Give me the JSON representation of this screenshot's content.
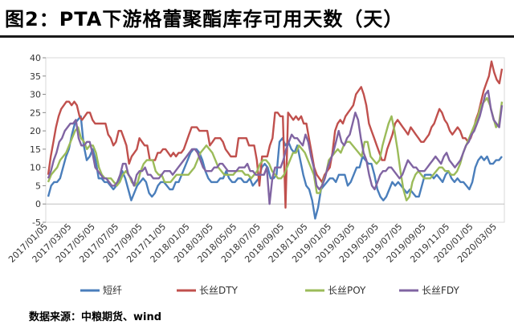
{
  "title": "图2：PTA下游格蕾聚酯库存可用天数（天）",
  "source": "数据来源：中粮期货、wind",
  "chart_data": {
    "type": "line",
    "ylim": [
      -5,
      40
    ],
    "yticks": [
      -5,
      0,
      5,
      10,
      15,
      20,
      25,
      30,
      35,
      40
    ],
    "x_tick_labels": [
      "2017/01/05",
      "2017/03/05",
      "2017/05/05",
      "2017/07/05",
      "2017/09/05",
      "2017/11/05",
      "2018/01/05",
      "2018/03/05",
      "2018/05/05",
      "2018/07/05",
      "2018/09/05",
      "2018/11/05",
      "2019/01/05",
      "2019/03/05",
      "2019/05/05",
      "2019/07/05",
      "2019/09/05",
      "2019/11/05",
      "2020/01/05",
      "2020/03/05"
    ],
    "legend_position": "bottom",
    "series": [
      {
        "name": "短纤",
        "color": "#4a7ebb",
        "values": [
          2,
          5,
          6,
          6,
          7,
          10,
          13,
          15,
          19,
          22,
          23,
          24,
          16,
          12,
          13,
          15,
          12,
          7,
          7,
          6,
          6,
          5,
          4,
          5,
          6,
          9,
          7,
          4,
          1,
          3,
          5,
          6,
          7,
          6,
          3,
          2,
          3,
          5,
          6,
          6,
          5,
          4,
          4,
          6,
          6,
          8,
          10,
          12,
          14,
          15,
          15,
          14,
          12,
          9,
          7,
          6,
          6,
          6,
          7,
          7,
          9,
          7,
          6,
          6,
          7,
          7,
          6,
          6,
          7,
          5,
          6,
          7,
          10,
          11,
          10,
          7,
          7,
          8,
          17,
          18,
          16,
          17,
          15,
          14,
          16,
          12,
          8,
          5,
          4,
          1,
          -4,
          -1,
          4,
          5,
          6,
          7,
          7,
          6,
          8,
          8,
          8,
          5,
          6,
          8,
          10,
          10,
          13,
          12,
          11,
          11,
          8,
          4,
          2,
          1,
          2,
          4,
          6,
          5,
          6,
          5,
          4,
          3,
          4,
          3,
          2,
          2,
          5,
          8,
          8,
          8,
          7,
          8,
          7,
          6,
          8,
          9,
          7,
          6,
          7,
          6,
          6,
          5,
          4,
          6,
          10,
          12,
          13,
          12,
          13,
          11,
          11,
          12,
          12,
          13
        ]
      },
      {
        "name": "长丝DTY",
        "color": "#c0504d",
        "values": [
          8,
          13,
          17,
          21,
          24,
          26,
          27,
          28,
          28,
          27,
          28,
          27,
          24,
          23,
          24,
          25,
          25,
          23,
          22,
          22,
          22,
          22,
          22,
          19,
          18,
          16,
          17,
          20,
          20,
          18,
          16,
          11,
          13,
          14,
          15,
          18,
          17,
          16,
          16,
          12,
          12,
          12,
          14,
          14,
          15,
          15,
          14,
          13,
          14,
          13,
          14,
          14,
          15,
          17,
          19,
          21,
          21,
          21,
          20,
          20,
          20,
          20,
          16,
          17,
          18,
          18,
          18,
          17,
          15,
          14,
          13,
          13,
          13,
          18,
          18,
          18,
          18,
          16,
          16,
          16,
          12,
          5,
          13,
          13,
          13,
          16,
          18,
          25,
          25,
          24,
          24,
          -1,
          25,
          24,
          23,
          24,
          23,
          24,
          22,
          22,
          18,
          14,
          10,
          8,
          7,
          6,
          8,
          9,
          10,
          14,
          20,
          22,
          23,
          22,
          24,
          25,
          26,
          27,
          30,
          31,
          32,
          30,
          27,
          22,
          20,
          18,
          16,
          14,
          12,
          12,
          15,
          17,
          19,
          22,
          23,
          22,
          21,
          20,
          19,
          21,
          20,
          19,
          18,
          17,
          17,
          18,
          19,
          21,
          22,
          24,
          26,
          25,
          23,
          22,
          20,
          19,
          20,
          21,
          20,
          18,
          18,
          17,
          18,
          20,
          23,
          25,
          28,
          31,
          33,
          35,
          39,
          36,
          34,
          33,
          37
        ]
      },
      {
        "name": "长丝POY",
        "color": "#9bbb59",
        "values": [
          6,
          8,
          9,
          10,
          12,
          13,
          14,
          16,
          18,
          20,
          21,
          18,
          17,
          15,
          16,
          16,
          14,
          10,
          8,
          7,
          7,
          7,
          6,
          5,
          6,
          8,
          9,
          8,
          6,
          5,
          6,
          9,
          11,
          12,
          12,
          12,
          9,
          8,
          8,
          6,
          6,
          6,
          7,
          8,
          8,
          8,
          8,
          8,
          9,
          10,
          12,
          14,
          15,
          16,
          15,
          14,
          12,
          10,
          9,
          8,
          8,
          8,
          8,
          9,
          9,
          9,
          8,
          8,
          7,
          8,
          9,
          11,
          12,
          12,
          11,
          9,
          8,
          7,
          7,
          8,
          10,
          12,
          14,
          14,
          16,
          15,
          14,
          12,
          10,
          8,
          3,
          3,
          6,
          8,
          12,
          13,
          14,
          15,
          14,
          16,
          17,
          17,
          16,
          15,
          14,
          13,
          17,
          17,
          13,
          12,
          11,
          12,
          16,
          19,
          22,
          24,
          20,
          15,
          9,
          4,
          1,
          2,
          6,
          8,
          9,
          8,
          7,
          7,
          7,
          8,
          9,
          10,
          10,
          9,
          9,
          8,
          8,
          9,
          11,
          14,
          16,
          18,
          20,
          22,
          24,
          27,
          28,
          29,
          27,
          24,
          21,
          22,
          28
        ]
      },
      {
        "name": "长丝FDY",
        "color": "#8064a2",
        "values": [
          7,
          9,
          12,
          14,
          17,
          18,
          20,
          21,
          22,
          22,
          23,
          18,
          16,
          16,
          17,
          17,
          14,
          10,
          9,
          8,
          7,
          7,
          6,
          5,
          5,
          6,
          8,
          11,
          11,
          8,
          7,
          5,
          8,
          9,
          9,
          10,
          8,
          8,
          7,
          7,
          7,
          8,
          9,
          9,
          9,
          8,
          9,
          10,
          11,
          12,
          13,
          14,
          15,
          15,
          14,
          12,
          10,
          9,
          9,
          9,
          10,
          10,
          11,
          11,
          10,
          9,
          9,
          9,
          9,
          10,
          10,
          10,
          11,
          9,
          9,
          8,
          8,
          8,
          8,
          10,
          0,
          7,
          10,
          10,
          10,
          12,
          15,
          17,
          19,
          18,
          18,
          17,
          16,
          19,
          17,
          13,
          10,
          5,
          4,
          5,
          7,
          10,
          12,
          14,
          17,
          20,
          17,
          16,
          18,
          19,
          22,
          25,
          23,
          18,
          14,
          12,
          8,
          5,
          4,
          6,
          8,
          9,
          9,
          10,
          10,
          9,
          8,
          7,
          8,
          10,
          12,
          11,
          10,
          10,
          9,
          9,
          9,
          10,
          11,
          12,
          13,
          12,
          11,
          13,
          14,
          12,
          11,
          10,
          11,
          12,
          14,
          16,
          17,
          19,
          20,
          22,
          24,
          27,
          30,
          31,
          26,
          23,
          22,
          21,
          27
        ]
      }
    ]
  }
}
